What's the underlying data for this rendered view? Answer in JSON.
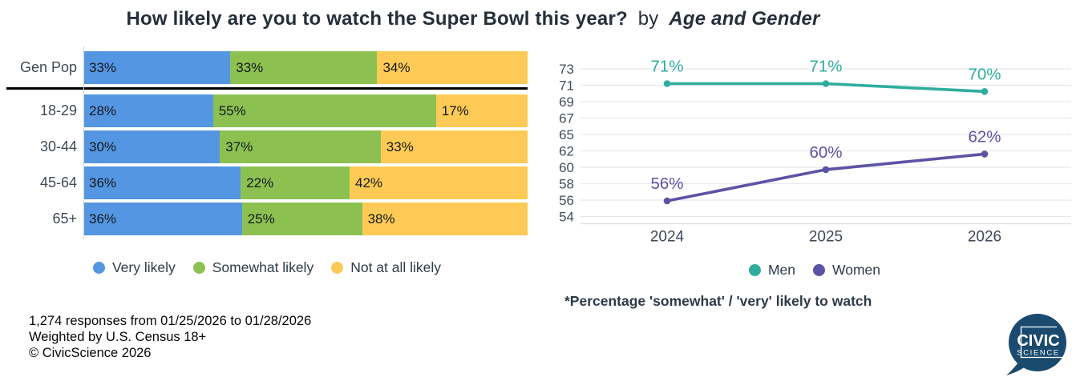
{
  "title": {
    "main": "How likely are you to watch the Super Bowl this year?",
    "by": "by",
    "emphasis": "Age and Gender"
  },
  "colors": {
    "very_likely": "#5596e2",
    "somewhat_likely": "#8cc152",
    "not_at_all_likely": "#fdcb55",
    "men": "#2ead9e",
    "women": "#5c53a5",
    "gridline": "#e8e8ee",
    "tick_text": "#434e5b",
    "logo_navy": "#1a4a6e"
  },
  "chart_data": [
    {
      "type": "bar",
      "orientation": "horizontal-stacked",
      "categories": [
        "Gen Pop",
        "18-29",
        "30-44",
        "45-64",
        "65+"
      ],
      "series": [
        {
          "name": "Very likely",
          "color": "#5596e2",
          "values": [
            33,
            28,
            30,
            36,
            36
          ]
        },
        {
          "name": "Somewhat likely",
          "color": "#8cc152",
          "values": [
            33,
            55,
            37,
            22,
            25
          ]
        },
        {
          "name": "Not at all likely",
          "color": "#fdcb55",
          "values": [
            34,
            17,
            33,
            42,
            38
          ]
        }
      ],
      "divider_after": "Gen Pop",
      "value_suffix": "%",
      "legend_position": "bottom"
    },
    {
      "type": "line",
      "x": [
        "2024",
        "2025",
        "2026"
      ],
      "series": [
        {
          "name": "Men",
          "color": "#2ead9e",
          "values": [
            71,
            71,
            70
          ]
        },
        {
          "name": "Women",
          "color": "#5c53a5",
          "values": [
            56,
            60,
            62
          ]
        }
      ],
      "yticks": [
        73,
        71,
        69,
        67,
        65,
        62,
        60,
        58,
        56,
        54
      ],
      "ylim": [
        54,
        72.9
      ],
      "grid": true,
      "label_suffix": "%",
      "legend_position": "bottom",
      "note": "*Percentage 'somewhat' / 'very' likely to watch"
    }
  ],
  "footer": {
    "line1": "1,274 responses from 01/25/2026 to 01/28/2026",
    "line2": "Weighted by U.S. Census 18+",
    "line3": "© CivicScience 2026"
  },
  "logo": {
    "line1": "CIVIC",
    "line2": "SCIENCE"
  }
}
